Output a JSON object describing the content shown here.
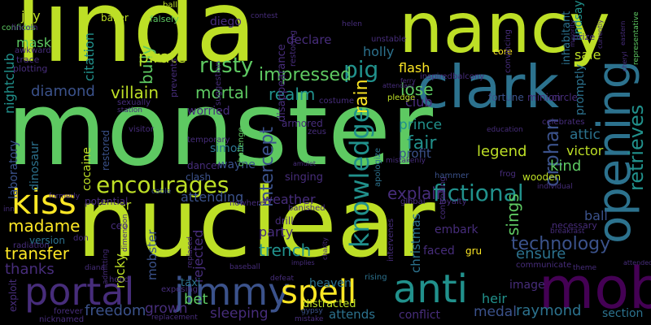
{
  "colors": {
    "background": "#000000",
    "palette": [
      "#bddf26",
      "#3b528b",
      "#440154",
      "#21918c",
      "#5ec962",
      "#fde725",
      "#2c728e",
      "#472d7b"
    ]
  },
  "words": [
    "linda",
    "monster",
    "nuclear",
    "nancy",
    "clark",
    "mob",
    "portal",
    "jimmy",
    "spell",
    "anti",
    "opening",
    "kiss",
    "encourages",
    "knowledge",
    "fictional",
    "pig",
    "diamond",
    "mortal",
    "villain",
    "bully",
    "pirate",
    "rusty",
    "impressed",
    "realm",
    "rain",
    "intercept",
    "orphan",
    "retrieves",
    "technology",
    "transfer",
    "madame",
    "thanks",
    "freedom",
    "raymond",
    "section",
    "medal",
    "conflict",
    "attends",
    "sleeping",
    "grown",
    "bet",
    "heaven",
    "trench",
    "party",
    "weather",
    "diner",
    "attending",
    "rocky",
    "mobster",
    "rejected",
    "sings",
    "ensure",
    "legend",
    "kind",
    "victor",
    "attic",
    "fair",
    "profit",
    "prince",
    "club",
    "lose",
    "flash",
    "holly",
    "sale",
    "mask",
    "citation",
    "joy",
    "nightclub",
    "laboratory",
    "dinosaur",
    "cocaine",
    "restored",
    "simon",
    "wayne",
    "worried",
    "declare",
    "explain",
    "heir",
    "image",
    "christmas",
    "faced",
    "ball",
    "promptly",
    "lindsay",
    "diego",
    "baker",
    "falsely",
    "confides",
    "dancer",
    "clash",
    "challenge",
    "singing",
    "armored",
    "zeus",
    "costume",
    "pledge",
    "fortune",
    "minion",
    "circle",
    "core",
    "inhabitant",
    "distracted",
    "rising",
    "embark",
    "gru",
    "drill",
    "banished",
    "nowhere",
    "cable",
    "potential",
    "ceo",
    "don",
    "version",
    "radiation",
    "exploit",
    "hood",
    "diana",
    "taxi",
    "exposing",
    "forever",
    "nicknamed",
    "replacement",
    "gypsy",
    "mistake",
    "intervenes",
    "controlling",
    "global",
    "loyalty",
    "hammer",
    "wooden",
    "frog",
    "individual",
    "necessary",
    "breakfast",
    "communicate",
    "theme",
    "attended",
    "representative",
    "cheryl",
    "apologize",
    "mistakenly",
    "amulet",
    "education",
    "celebrates",
    "sexually",
    "station",
    "visitor",
    "temporary",
    "suggestion",
    "disappearance",
    "prevents",
    "lincoln",
    "awkward",
    "trace",
    "plotting",
    "ballet",
    "contest",
    "helen",
    "unstable",
    "balcony",
    "inspired",
    "ferry",
    "attendant",
    "restoring",
    "convincing",
    "prize",
    "majority",
    "currently",
    "eastern",
    "dimension",
    "formerly",
    "inn",
    "replaced",
    "admitting",
    "baseball",
    "defeat",
    "implies",
    "charity",
    "cheat",
    "lion",
    "assigned",
    "fails",
    "tournament",
    "mansion",
    "twelve",
    "eye",
    "rabbit",
    "guard",
    "dream",
    "demand",
    "concerned",
    "oliver",
    "tale",
    "escort",
    "vault",
    "pillow",
    "sabotage",
    "snake",
    "bait",
    "steal",
    "saved",
    "pop",
    "turtle",
    "unconscious",
    "infected",
    "immortality"
  ]
}
